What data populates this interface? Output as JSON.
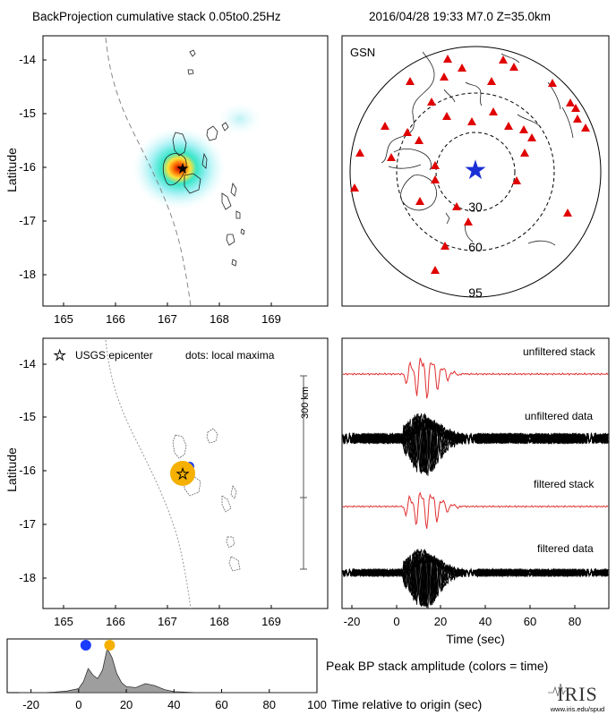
{
  "header": {
    "title": "BackProjection cumulative stack 0.05to0.25Hz",
    "event": "2016/04/28 19:33  M7.0  Z=35.0km"
  },
  "map_panel": {
    "ylabel": "Latitude",
    "lat_ticks": [
      "-14",
      "-15",
      "-16",
      "-17",
      "-18"
    ],
    "lon_ticks": [
      "165",
      "166",
      "167",
      "168",
      "169"
    ]
  },
  "network_panel": {
    "label": "GSN",
    "ring_labels": [
      "30",
      "60",
      "95"
    ]
  },
  "lower_map": {
    "ylabel": "Latitude",
    "lat_ticks": [
      "-14",
      "-15",
      "-16",
      "-17",
      "-18"
    ],
    "lon_ticks": [
      "165",
      "166",
      "167",
      "168",
      "169"
    ],
    "legend_epicenter": "USGS epicenter",
    "legend_dots": "dots: local maxima",
    "scale_label": "300 km"
  },
  "seismograms": {
    "labels": [
      "unfiltered stack",
      "unfiltered data",
      "filtered stack",
      "filtered data"
    ],
    "x_ticks": [
      "-20",
      "0",
      "20",
      "40",
      "60",
      "80"
    ],
    "xlabel": "Time (sec)",
    "note": "Peak BP stack amplitude (colors = time)"
  },
  "amplitude_panel": {
    "x_ticks": [
      "-20",
      "0",
      "20",
      "40",
      "60",
      "80",
      "100"
    ],
    "xlabel": "Time relative to origin (sec)"
  },
  "logo": {
    "text": "IRIS",
    "url": "www.iris.edu/spud"
  },
  "colors": {
    "station": "#e00000",
    "epicenter_star": "#1a2fd6",
    "peak_early": "#1a3cff",
    "peak_main": "#f5b000",
    "stack_trace": "#e03030"
  },
  "chart_data": {
    "type": "area",
    "x": [
      -25,
      -20,
      -15,
      -10,
      -5,
      0,
      2,
      4,
      6,
      8,
      10,
      12,
      14,
      16,
      18,
      20,
      24,
      28,
      32,
      36,
      40,
      50,
      60,
      70,
      80,
      90,
      100
    ],
    "y": [
      0,
      0,
      0,
      0.01,
      0.03,
      0.08,
      0.22,
      0.48,
      0.35,
      0.28,
      0.45,
      0.88,
      0.7,
      0.38,
      0.2,
      0.12,
      0.1,
      0.18,
      0.14,
      0.06,
      0.02,
      0,
      0,
      0,
      0,
      0,
      0
    ],
    "xlim": [
      -30,
      100
    ],
    "ylim": [
      0,
      1
    ],
    "markers": [
      {
        "x": 3,
        "color": "#1a3cff"
      },
      {
        "x": 13,
        "color": "#f5b000"
      }
    ]
  }
}
